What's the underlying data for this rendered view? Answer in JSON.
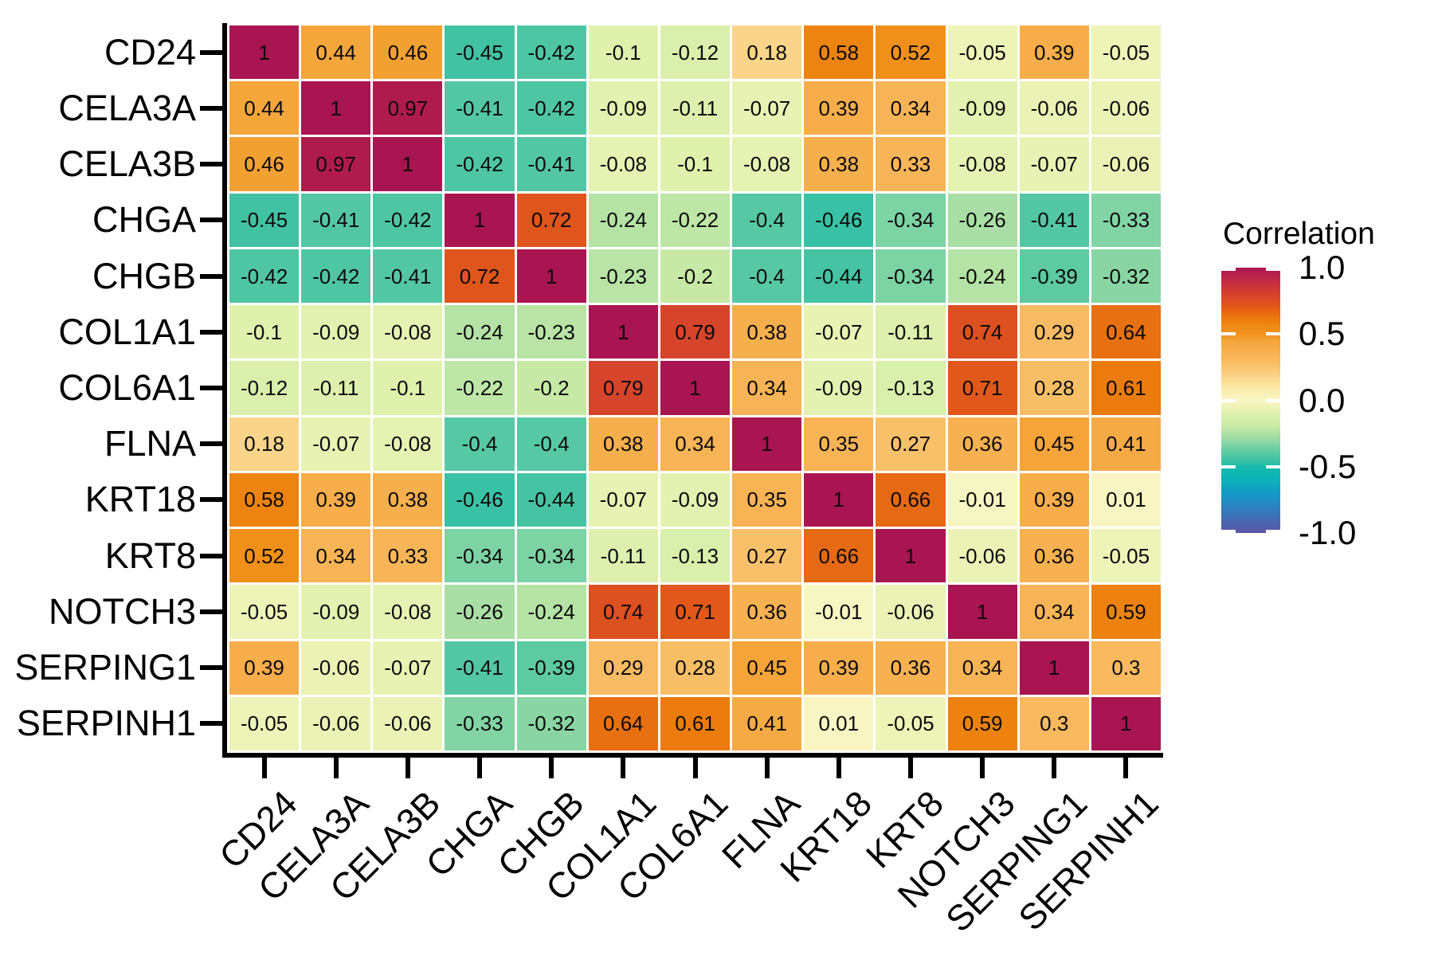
{
  "chart_data": {
    "type": "heatmap",
    "title": "",
    "categories": [
      "CD24",
      "CELA3A",
      "CELA3B",
      "CHGA",
      "CHGB",
      "COL1A1",
      "COL6A1",
      "FLNA",
      "KRT18",
      "KRT8",
      "NOTCH3",
      "SERPING1",
      "SERPINH1"
    ],
    "matrix": [
      [
        1,
        0.44,
        0.46,
        -0.45,
        -0.42,
        -0.1,
        -0.12,
        0.18,
        0.58,
        0.52,
        -0.05,
        0.39,
        -0.05
      ],
      [
        0.44,
        1,
        0.97,
        -0.41,
        -0.42,
        -0.09,
        -0.11,
        -0.07,
        0.39,
        0.34,
        -0.09,
        -0.06,
        -0.06
      ],
      [
        0.46,
        0.97,
        1,
        -0.42,
        -0.41,
        -0.08,
        -0.1,
        -0.08,
        0.38,
        0.33,
        -0.08,
        -0.07,
        -0.06
      ],
      [
        -0.45,
        -0.41,
        -0.42,
        1,
        0.72,
        -0.24,
        -0.22,
        -0.4,
        -0.46,
        -0.34,
        -0.26,
        -0.41,
        -0.33
      ],
      [
        -0.42,
        -0.42,
        -0.41,
        0.72,
        1,
        -0.23,
        -0.2,
        -0.4,
        -0.44,
        -0.34,
        -0.24,
        -0.39,
        -0.32
      ],
      [
        -0.1,
        -0.09,
        -0.08,
        -0.24,
        -0.23,
        1,
        0.79,
        0.38,
        -0.07,
        -0.11,
        0.74,
        0.29,
        0.64
      ],
      [
        -0.12,
        -0.11,
        -0.1,
        -0.22,
        -0.2,
        0.79,
        1,
        0.34,
        -0.09,
        -0.13,
        0.71,
        0.28,
        0.61
      ],
      [
        0.18,
        -0.07,
        -0.08,
        -0.4,
        -0.4,
        0.38,
        0.34,
        1,
        0.35,
        0.27,
        0.36,
        0.45,
        0.41
      ],
      [
        0.58,
        0.39,
        0.38,
        -0.46,
        -0.44,
        -0.07,
        -0.09,
        0.35,
        1,
        0.66,
        -0.01,
        0.39,
        0.01
      ],
      [
        0.52,
        0.34,
        0.33,
        -0.34,
        -0.34,
        -0.11,
        -0.13,
        0.27,
        0.66,
        1,
        -0.06,
        0.36,
        -0.05
      ],
      [
        -0.05,
        -0.09,
        -0.08,
        -0.26,
        -0.24,
        0.74,
        0.71,
        0.36,
        -0.01,
        -0.06,
        1,
        0.34,
        0.59
      ],
      [
        0.39,
        -0.06,
        -0.07,
        -0.41,
        -0.39,
        0.29,
        0.28,
        0.45,
        0.39,
        0.36,
        0.34,
        1,
        0.3
      ],
      [
        -0.05,
        -0.06,
        -0.06,
        -0.33,
        -0.32,
        0.64,
        0.61,
        0.41,
        0.01,
        -0.05,
        0.59,
        0.3,
        1
      ]
    ],
    "legend": {
      "title": "Correlation",
      "ticks": [
        1.0,
        0.5,
        0.0,
        -0.5,
        -1.0
      ],
      "tick_labels": [
        "1.0",
        "0.5",
        "0.0",
        "-0.5",
        "-1.0"
      ],
      "range": [
        -1,
        1
      ],
      "position": "right"
    },
    "colorscale": [
      {
        "v": -1.0,
        "c": "#5B55A6"
      },
      {
        "v": -0.9,
        "c": "#4569B1"
      },
      {
        "v": -0.8,
        "c": "#2A83C2"
      },
      {
        "v": -0.7,
        "c": "#1299C6"
      },
      {
        "v": -0.6,
        "c": "#0CB2B9"
      },
      {
        "v": -0.5,
        "c": "#14BCAB"
      },
      {
        "v": -0.45,
        "c": "#41C2A3"
      },
      {
        "v": -0.4,
        "c": "#57C8A4"
      },
      {
        "v": -0.35,
        "c": "#76D1A4"
      },
      {
        "v": -0.3,
        "c": "#95D9A4"
      },
      {
        "v": -0.2,
        "c": "#C8E9A6"
      },
      {
        "v": -0.1,
        "c": "#E0F1AE"
      },
      {
        "v": -0.05,
        "c": "#EDF4B7"
      },
      {
        "v": 0.0,
        "c": "#F8F6C6"
      },
      {
        "v": 0.05,
        "c": "#FAF0B6"
      },
      {
        "v": 0.1,
        "c": "#FBE8A4"
      },
      {
        "v": 0.2,
        "c": "#FAD082"
      },
      {
        "v": 0.3,
        "c": "#F8B95F"
      },
      {
        "v": 0.4,
        "c": "#F6AC48"
      },
      {
        "v": 0.45,
        "c": "#F4A438"
      },
      {
        "v": 0.5,
        "c": "#F0921F"
      },
      {
        "v": 0.55,
        "c": "#EF8C15"
      },
      {
        "v": 0.6,
        "c": "#EC7F0C"
      },
      {
        "v": 0.7,
        "c": "#E25A18"
      },
      {
        "v": 0.8,
        "c": "#D5412D"
      },
      {
        "v": 0.9,
        "c": "#C22A47"
      },
      {
        "v": 1.0,
        "c": "#A81551"
      }
    ],
    "colors": {
      "cell_text": "#0b0b0b",
      "axis": "#000000",
      "background": "#ffffff",
      "grid_gap": "#ffffff"
    }
  }
}
